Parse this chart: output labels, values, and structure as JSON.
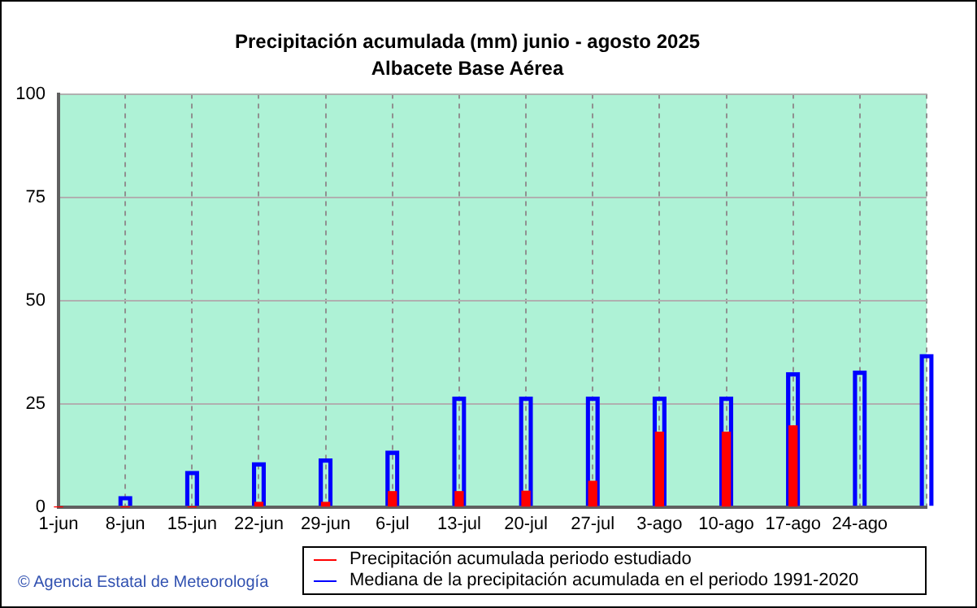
{
  "chart_data": {
    "type": "bar",
    "title": "Precipitación acumulada (mm) junio - agosto 2025",
    "subtitle": "Albacete Base Aérea",
    "categories": [
      "1-jun",
      "8-jun",
      "15-jun",
      "22-jun",
      "29-jun",
      "6-jul",
      "13-jul",
      "20-jul",
      "27-jul",
      "3-ago",
      "10-ago",
      "17-ago",
      "24-ago",
      null
    ],
    "series": [
      {
        "name": "Mediana de la precipitación acumulada en el periodo 1991-2020",
        "color": "#0000ff",
        "values": [
          0,
          2.5,
          8.6,
          10.7,
          11.6,
          13.5,
          26.6,
          26.6,
          26.6,
          26.6,
          26.6,
          32.5,
          32.9,
          36.9
        ]
      },
      {
        "name": "Precipitación acumulada periodo estudiado",
        "color": "#ff0000",
        "values": [
          0,
          0,
          0,
          1.1,
          1.1,
          3.7,
          3.7,
          3.8,
          6.2,
          18.1,
          18.1,
          19.6,
          null,
          null
        ]
      }
    ],
    "ylim": [
      0,
      100
    ],
    "yticks": [
      0,
      25,
      50,
      75,
      100
    ],
    "grid": true,
    "legend": "bottom",
    "annotations": [
      "© Agencia Estatal de Meteorología"
    ]
  }
}
